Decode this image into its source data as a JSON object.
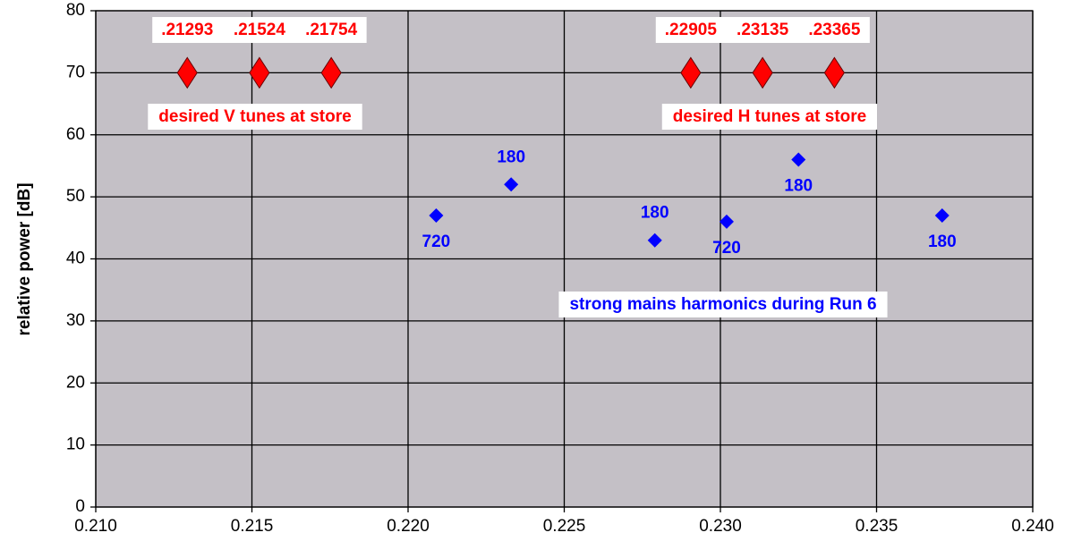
{
  "chart_data": {
    "type": "scatter",
    "y_label": "relative power [dB]",
    "xlim": [
      0.21,
      0.24
    ],
    "xticks": [
      {
        "value": 0.21,
        "label": "0.210"
      },
      {
        "value": 0.215,
        "label": "0.215"
      },
      {
        "value": 0.22,
        "label": "0.220"
      },
      {
        "value": 0.225,
        "label": "0.225"
      },
      {
        "value": 0.23,
        "label": "0.230"
      },
      {
        "value": 0.235,
        "label": "0.235"
      },
      {
        "value": 0.24,
        "label": "0.240"
      }
    ],
    "ylim": [
      0,
      80
    ],
    "yticks": [
      0,
      10,
      20,
      30,
      40,
      50,
      60,
      70,
      80
    ],
    "grid": true,
    "series": [
      {
        "color": "#ff0000",
        "x": [
          0.21293,
          0.21524,
          0.21754
        ],
        "values": [
          70,
          70,
          70
        ],
        "labels": [
          ".21293",
          ".21524",
          ".21754"
        ],
        "annotation": "desired V tunes at store"
      },
      {
        "color": "#ff0000",
        "x": [
          0.22905,
          0.23135,
          0.23365
        ],
        "values": [
          70,
          70,
          70
        ],
        "labels": [
          ".22905",
          ".23135",
          ".23365"
        ],
        "annotation": "desired H tunes at store"
      },
      {
        "color": "#0000ff",
        "x": [
          0.2209,
          0.2233,
          0.2279,
          0.2302,
          0.2325,
          0.2371
        ],
        "values": [
          47,
          52,
          43,
          46,
          56,
          47
        ],
        "labels": [
          "720",
          "180",
          "180",
          "720",
          "180",
          "180"
        ],
        "annotation": "strong mains harmonics during Run 6"
      }
    ]
  }
}
